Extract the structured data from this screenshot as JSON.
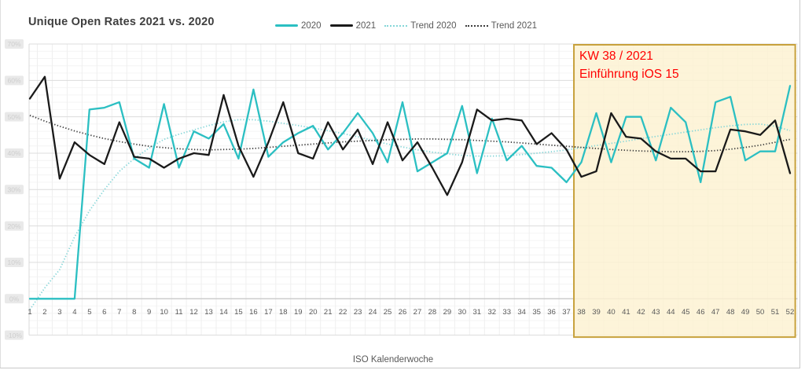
{
  "window": {
    "background": "#ffffff",
    "border_color": "#c9c9c9"
  },
  "chart": {
    "title": "Unique Open Rates 2021 vs. 2020",
    "legend": [
      {
        "label": "2020",
        "color": "#2bbfc2",
        "style": "solid"
      },
      {
        "label": "2021",
        "color": "#1a1a1a",
        "style": "solid"
      },
      {
        "label": "Trend 2020",
        "color": "#85d6d8",
        "style": "dotted"
      },
      {
        "label": "Trend 2021",
        "color": "#3c3c3c",
        "style": "dotted"
      }
    ]
  },
  "chart_data": {
    "type": "line",
    "title": "Unique Open Rates 2021 vs. 2020",
    "xlabel": "ISO Kalenderwoche",
    "ylabel": "",
    "legend_position": "top",
    "grid": true,
    "categories": [
      1,
      2,
      3,
      4,
      5,
      6,
      7,
      8,
      9,
      10,
      11,
      12,
      13,
      14,
      15,
      16,
      17,
      18,
      19,
      20,
      21,
      22,
      23,
      24,
      25,
      26,
      27,
      28,
      29,
      30,
      31,
      32,
      33,
      34,
      35,
      36,
      37,
      38,
      39,
      40,
      41,
      42,
      43,
      44,
      45,
      46,
      47,
      48,
      49,
      50,
      51,
      52
    ],
    "y_axis": {
      "min": -10,
      "max": 70,
      "major_step": 10,
      "minor_step": 2,
      "unit": "%",
      "tick_labels": [
        "70%",
        "60%",
        "50%",
        "40%",
        "30%",
        "20%",
        "10%",
        "0%",
        "-10%"
      ],
      "tick_labels_redacted": true
    },
    "series": [
      {
        "name": "2020",
        "color": "#2bbfc2",
        "dash": "solid",
        "width": 2.3,
        "values": [
          0,
          0,
          0,
          0,
          52,
          52.5,
          54,
          38.5,
          36,
          53.5,
          36,
          46,
          44,
          48,
          38.5,
          57.5,
          39,
          43,
          45.5,
          47.5,
          41,
          45.5,
          51,
          45.5,
          37.5,
          54,
          35,
          37.5,
          40,
          53,
          34.5,
          49.5,
          38,
          42,
          36.5,
          36,
          32,
          37.5,
          51,
          37.5,
          50,
          50,
          38,
          52.5,
          48.5,
          32,
          54,
          55.5,
          38,
          40.5,
          40.5,
          58.5
        ]
      },
      {
        "name": "2021",
        "color": "#1a1a1a",
        "dash": "solid",
        "width": 2.3,
        "values": [
          55,
          61,
          33,
          43,
          39.5,
          37,
          48.5,
          39,
          38.5,
          36,
          38.5,
          40,
          39.5,
          56,
          42,
          33.5,
          43,
          54,
          40,
          38.5,
          48.5,
          41,
          46.5,
          37,
          48.5,
          38,
          43,
          36,
          28.5,
          37.5,
          52,
          49,
          49.5,
          49,
          42.5,
          45.5,
          41,
          33.5,
          35,
          51,
          44.5,
          44,
          40.5,
          38.5,
          38.5,
          35,
          35,
          46.5,
          46,
          45,
          49,
          34.5
        ]
      },
      {
        "name": "Trend 2020",
        "color": "#85d6d8",
        "dash": "dotted",
        "width": 1.8,
        "values": [
          -3,
          3,
          8,
          17,
          24.2,
          30,
          35,
          38.5,
          41.4,
          43.8,
          45.2,
          46.4,
          47.6,
          48.6,
          49.2,
          49.2,
          48.8,
          48.2,
          47.6,
          46.9,
          46.2,
          45.4,
          44.5,
          43.5,
          42.5,
          41.7,
          40.9,
          40.3,
          39.8,
          39.4,
          39.2,
          39.2,
          39.3,
          39.6,
          40,
          40.4,
          40.9,
          41.5,
          42.1,
          42.7,
          43.3,
          44,
          44.6,
          45.2,
          45.8,
          46.4,
          47,
          47.5,
          47.9,
          48,
          47.4,
          46.2
        ]
      },
      {
        "name": "Trend 2021",
        "color": "#3c3c3c",
        "dash": "dotted",
        "width": 1.8,
        "values": [
          50.4,
          48.8,
          47.4,
          46.1,
          45,
          44,
          43.2,
          42.5,
          41.9,
          41.5,
          41.2,
          41,
          40.9,
          41,
          41.1,
          41.3,
          41.6,
          41.9,
          42.2,
          42.5,
          42.8,
          43.1,
          43.3,
          43.5,
          43.7,
          43.8,
          43.9,
          43.9,
          43.8,
          43.7,
          43.5,
          43.3,
          43.1,
          42.8,
          42.5,
          42.2,
          41.9,
          41.6,
          41.3,
          41,
          40.8,
          40.6,
          40.5,
          40.4,
          40.4,
          40.5,
          40.7,
          41.1,
          41.6,
          42.2,
          43,
          43.8
        ]
      }
    ],
    "highlight_region": {
      "from_week": 37.5,
      "to_week": 52.35,
      "fill": "#fcf2d1",
      "fill_opacity": 0.82,
      "border": "#c7a13c",
      "label_line1": "KW 38 / 2021",
      "label_line2": "Einführung iOS 15",
      "text_color": "#ff0000"
    }
  }
}
